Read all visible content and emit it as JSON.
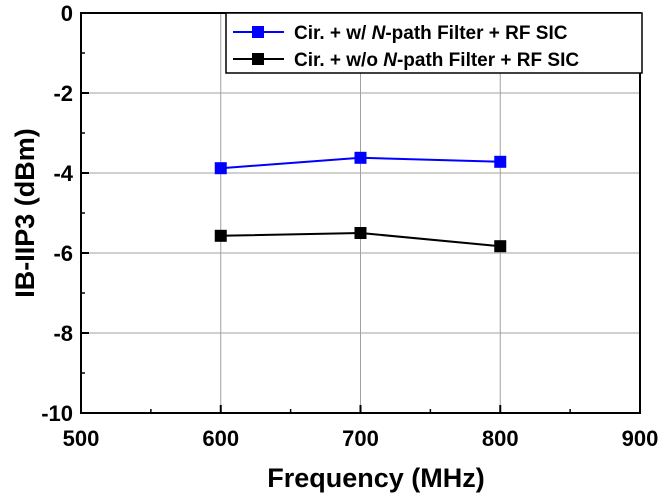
{
  "chart_data": {
    "type": "line",
    "title": "",
    "xlabel": "Frequency (MHz)",
    "ylabel": "IB-IIP3 (dBm)",
    "xlim": [
      500,
      900
    ],
    "ylim": [
      -10,
      0
    ],
    "xticks": [
      500,
      600,
      700,
      800,
      900
    ],
    "yticks": [
      0,
      -2,
      -4,
      -6,
      -8,
      -10
    ],
    "grid": true,
    "legend_position": "top-right",
    "series": [
      {
        "name_parts": [
          "Cir. + w/ ",
          "N",
          "-path Filter + RF SIC"
        ],
        "color": "#0000ff",
        "marker": "square",
        "x": [
          600,
          700,
          800
        ],
        "y": [
          -3.88,
          -3.62,
          -3.72
        ]
      },
      {
        "name_parts": [
          "Cir. + w/o ",
          "N",
          "-path Filter + RF SIC"
        ],
        "color": "#000000",
        "marker": "square",
        "x": [
          600,
          700,
          800
        ],
        "y": [
          -5.57,
          -5.5,
          -5.83
        ]
      }
    ]
  }
}
